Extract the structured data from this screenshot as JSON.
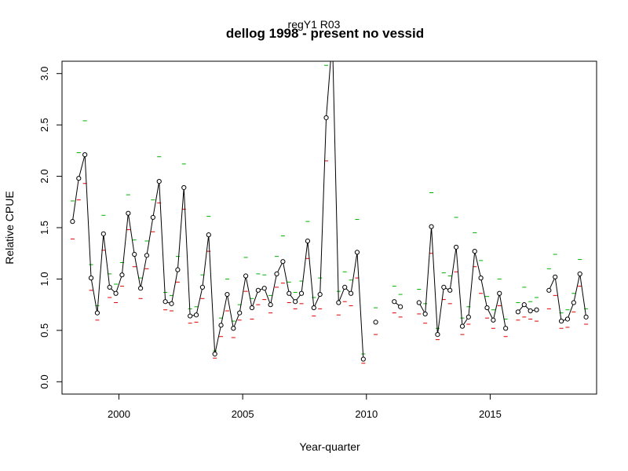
{
  "chart_data": {
    "type": "line",
    "subtitle": "regY1 R03",
    "title": "dellog 1998 - present no vessid",
    "xlabel": "Year-quarter",
    "ylabel": "Relative CPUE",
    "xlim": [
      1997.7,
      2019.3
    ],
    "ylim": [
      -0.12,
      3.12
    ],
    "x_ticks": [
      2000,
      2005,
      2010,
      2015
    ],
    "y_ticks": [
      0.0,
      0.5,
      1.0,
      1.5,
      2.0,
      2.5,
      3.0
    ],
    "x_tick_labels": [
      "2000",
      "2005",
      "2010",
      "2015"
    ],
    "y_tick_labels": [
      "0.0",
      "0.5",
      "1.0",
      "1.5",
      "2.0",
      "2.5",
      "3.0"
    ],
    "series_colors": {
      "line": "#000000",
      "upper": "#00b000",
      "lower": "#e00000"
    },
    "segments": [
      [
        [
          1998.125,
          1.56
        ],
        [
          1998.375,
          1.98
        ],
        [
          1998.625,
          2.21
        ],
        [
          1998.875,
          1.01
        ],
        [
          1999.125,
          0.67
        ],
        [
          1999.375,
          1.44
        ],
        [
          1999.625,
          0.92
        ],
        [
          1999.875,
          0.86
        ],
        [
          2000.125,
          1.04
        ],
        [
          2000.375,
          1.64
        ],
        [
          2000.625,
          1.24
        ],
        [
          2000.875,
          0.91
        ],
        [
          2001.125,
          1.23
        ],
        [
          2001.375,
          1.6
        ],
        [
          2001.625,
          1.95
        ],
        [
          2001.875,
          0.78
        ],
        [
          2002.125,
          0.76
        ],
        [
          2002.375,
          1.09
        ],
        [
          2002.625,
          1.89
        ],
        [
          2002.875,
          0.64
        ],
        [
          2003.125,
          0.65
        ],
        [
          2003.375,
          0.92
        ],
        [
          2003.625,
          1.43
        ],
        [
          2003.875,
          0.27
        ],
        [
          2004.125,
          0.55
        ],
        [
          2004.375,
          0.85
        ],
        [
          2004.625,
          0.52
        ],
        [
          2004.875,
          0.67
        ],
        [
          2005.125,
          1.03
        ],
        [
          2005.375,
          0.72
        ],
        [
          2005.625,
          0.89
        ],
        [
          2005.875,
          0.91
        ],
        [
          2006.125,
          0.75
        ],
        [
          2006.375,
          1.05
        ],
        [
          2006.625,
          1.17
        ],
        [
          2006.875,
          0.86
        ],
        [
          2007.125,
          0.78
        ],
        [
          2007.375,
          0.86
        ],
        [
          2007.625,
          1.37
        ],
        [
          2007.875,
          0.72
        ],
        [
          2008.125,
          0.85
        ],
        [
          2008.375,
          2.57
        ],
        [
          2008.625,
          3.35
        ],
        [
          2008.875,
          0.77
        ],
        [
          2009.125,
          0.92
        ],
        [
          2009.375,
          0.86
        ],
        [
          2009.625,
          1.26
        ],
        [
          2009.875,
          0.22
        ]
      ],
      [
        [
          2010.375,
          0.58
        ]
      ],
      [
        [
          2011.125,
          0.78
        ],
        [
          2011.375,
          0.73
        ]
      ],
      [
        [
          2012.125,
          0.77
        ],
        [
          2012.375,
          0.66
        ],
        [
          2012.625,
          1.51
        ],
        [
          2012.875,
          0.46
        ],
        [
          2013.125,
          0.92
        ],
        [
          2013.375,
          0.89
        ],
        [
          2013.625,
          1.31
        ],
        [
          2013.875,
          0.54
        ],
        [
          2014.125,
          0.63
        ],
        [
          2014.375,
          1.27
        ],
        [
          2014.625,
          1.01
        ],
        [
          2014.875,
          0.72
        ],
        [
          2015.125,
          0.6
        ],
        [
          2015.375,
          0.86
        ],
        [
          2015.625,
          0.52
        ]
      ],
      [
        [
          2016.125,
          0.68
        ],
        [
          2016.375,
          0.75
        ],
        [
          2016.625,
          0.69
        ],
        [
          2016.875,
          0.7
        ]
      ],
      [
        [
          2017.375,
          0.89
        ],
        [
          2017.625,
          1.02
        ],
        [
          2017.875,
          0.59
        ],
        [
          2018.125,
          0.61
        ],
        [
          2018.375,
          0.77
        ],
        [
          2018.625,
          1.05
        ],
        [
          2018.875,
          0.63
        ]
      ]
    ],
    "upper": [
      [
        1998.125,
        1.76
      ],
      [
        1998.375,
        2.23
      ],
      [
        1998.625,
        2.54
      ],
      [
        1998.875,
        1.14
      ],
      [
        1999.125,
        0.74
      ],
      [
        1999.375,
        1.62
      ],
      [
        1999.625,
        1.05
      ],
      [
        1999.875,
        0.95
      ],
      [
        2000.125,
        1.16
      ],
      [
        2000.375,
        1.82
      ],
      [
        2000.625,
        1.38
      ],
      [
        2000.875,
        1.01
      ],
      [
        2001.125,
        1.37
      ],
      [
        2001.375,
        1.77
      ],
      [
        2001.625,
        2.19
      ],
      [
        2001.875,
        0.87
      ],
      [
        2002.125,
        0.84
      ],
      [
        2002.375,
        1.22
      ],
      [
        2002.625,
        2.12
      ],
      [
        2002.875,
        0.71
      ],
      [
        2003.125,
        0.73
      ],
      [
        2003.375,
        1.04
      ],
      [
        2003.625,
        1.61
      ],
      [
        2003.875,
        0.3
      ],
      [
        2004.125,
        0.62
      ],
      [
        2004.375,
        1.0
      ],
      [
        2004.625,
        0.59
      ],
      [
        2004.875,
        0.75
      ],
      [
        2005.125,
        1.21
      ],
      [
        2005.375,
        0.81
      ],
      [
        2005.625,
        1.05
      ],
      [
        2005.875,
        1.04
      ],
      [
        2006.125,
        0.84
      ],
      [
        2006.375,
        1.22
      ],
      [
        2006.625,
        1.42
      ],
      [
        2006.875,
        0.97
      ],
      [
        2007.125,
        0.87
      ],
      [
        2007.375,
        0.98
      ],
      [
        2007.625,
        1.56
      ],
      [
        2007.875,
        0.82
      ],
      [
        2008.125,
        1.01
      ],
      [
        2008.375,
        3.08
      ],
      [
        2008.875,
        0.88
      ],
      [
        2009.125,
        1.07
      ],
      [
        2009.375,
        0.99
      ],
      [
        2009.625,
        1.58
      ],
      [
        2009.875,
        0.27
      ],
      [
        2010.375,
        0.72
      ],
      [
        2011.125,
        0.93
      ],
      [
        2011.375,
        0.85
      ],
      [
        2012.125,
        0.9
      ],
      [
        2012.375,
        0.76
      ],
      [
        2012.625,
        1.84
      ],
      [
        2012.875,
        0.52
      ],
      [
        2013.125,
        1.06
      ],
      [
        2013.375,
        1.03
      ],
      [
        2013.625,
        1.6
      ],
      [
        2013.875,
        0.62
      ],
      [
        2014.125,
        0.73
      ],
      [
        2014.375,
        1.45
      ],
      [
        2014.625,
        1.18
      ],
      [
        2014.875,
        0.83
      ],
      [
        2015.125,
        0.7
      ],
      [
        2015.375,
        1.0
      ],
      [
        2015.625,
        0.61
      ],
      [
        2016.125,
        0.77
      ],
      [
        2016.375,
        0.92
      ],
      [
        2016.625,
        0.78
      ],
      [
        2016.875,
        0.82
      ],
      [
        2017.375,
        1.1
      ],
      [
        2017.625,
        1.24
      ],
      [
        2017.875,
        0.67
      ],
      [
        2018.125,
        0.7
      ],
      [
        2018.375,
        0.86
      ],
      [
        2018.625,
        1.19
      ],
      [
        2018.875,
        0.71
      ]
    ],
    "lower": [
      [
        1998.125,
        1.39
      ],
      [
        1998.375,
        1.77
      ],
      [
        1998.625,
        1.93
      ],
      [
        1998.875,
        0.89
      ],
      [
        1999.125,
        0.6
      ],
      [
        1999.375,
        1.28
      ],
      [
        1999.625,
        0.82
      ],
      [
        1999.875,
        0.77
      ],
      [
        2000.125,
        0.93
      ],
      [
        2000.375,
        1.48
      ],
      [
        2000.625,
        1.12
      ],
      [
        2000.875,
        0.81
      ],
      [
        2001.125,
        1.1
      ],
      [
        2001.375,
        1.46
      ],
      [
        2001.625,
        1.74
      ],
      [
        2001.875,
        0.7
      ],
      [
        2002.125,
        0.69
      ],
      [
        2002.375,
        0.97
      ],
      [
        2002.625,
        1.68
      ],
      [
        2002.875,
        0.57
      ],
      [
        2003.125,
        0.58
      ],
      [
        2003.375,
        0.81
      ],
      [
        2003.625,
        1.27
      ],
      [
        2003.875,
        0.23
      ],
      [
        2004.125,
        0.44
      ],
      [
        2004.375,
        0.69
      ],
      [
        2004.625,
        0.43
      ],
      [
        2004.875,
        0.6
      ],
      [
        2005.125,
        0.88
      ],
      [
        2005.375,
        0.61
      ],
      [
        2005.625,
        0.75
      ],
      [
        2005.875,
        0.8
      ],
      [
        2006.125,
        0.67
      ],
      [
        2006.375,
        0.92
      ],
      [
        2006.625,
        0.96
      ],
      [
        2006.875,
        0.77
      ],
      [
        2007.125,
        0.71
      ],
      [
        2007.375,
        0.76
      ],
      [
        2007.625,
        1.2
      ],
      [
        2007.875,
        0.64
      ],
      [
        2008.125,
        0.71
      ],
      [
        2008.375,
        2.15
      ],
      [
        2008.875,
        0.65
      ],
      [
        2009.125,
        0.78
      ],
      [
        2009.375,
        0.74
      ],
      [
        2009.625,
        1.01
      ],
      [
        2009.875,
        0.18
      ],
      [
        2010.375,
        0.46
      ],
      [
        2011.125,
        0.67
      ],
      [
        2011.375,
        0.63
      ],
      [
        2012.125,
        0.66
      ],
      [
        2012.375,
        0.57
      ],
      [
        2012.625,
        1.25
      ],
      [
        2012.875,
        0.41
      ],
      [
        2013.125,
        0.8
      ],
      [
        2013.375,
        0.76
      ],
      [
        2013.625,
        1.07
      ],
      [
        2013.875,
        0.46
      ],
      [
        2014.125,
        0.56
      ],
      [
        2014.375,
        1.12
      ],
      [
        2014.625,
        0.86
      ],
      [
        2014.875,
        0.62
      ],
      [
        2015.125,
        0.52
      ],
      [
        2015.375,
        0.74
      ],
      [
        2015.625,
        0.44
      ],
      [
        2016.125,
        0.6
      ],
      [
        2016.375,
        0.63
      ],
      [
        2016.625,
        0.61
      ],
      [
        2016.875,
        0.59
      ],
      [
        2017.375,
        0.71
      ],
      [
        2017.625,
        0.84
      ],
      [
        2017.875,
        0.52
      ],
      [
        2018.125,
        0.53
      ],
      [
        2018.375,
        0.68
      ],
      [
        2018.625,
        0.93
      ],
      [
        2018.875,
        0.56
      ]
    ]
  }
}
